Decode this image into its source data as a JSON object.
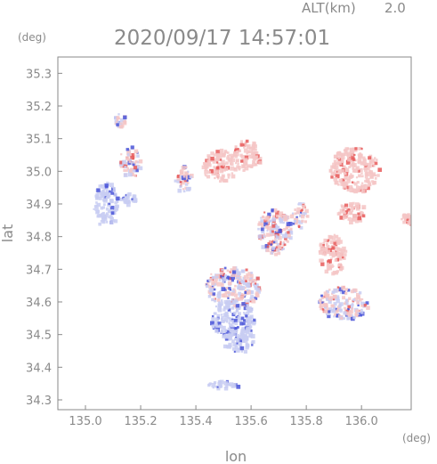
{
  "chart_data": {
    "type": "heatmap",
    "title": "2020/09/17 14:57:01",
    "altitude_label": "ALT(km)",
    "altitude_value": "2.0",
    "xlabel": "lon",
    "ylabel": "lat",
    "x_unit": "(deg)",
    "y_unit": "(deg)",
    "xlim": [
      134.9,
      136.18
    ],
    "ylim": [
      34.27,
      35.35
    ],
    "x_ticks": [
      "135.0",
      "135.2",
      "135.4",
      "135.6",
      "135.8",
      "136.0"
    ],
    "y_ticks": [
      "34.3",
      "34.4",
      "34.5",
      "34.6",
      "34.7",
      "34.8",
      "34.9",
      "35.0",
      "35.1",
      "35.2",
      "35.3"
    ],
    "grid": false,
    "colors": {
      "positive_light": "#f4c6c6",
      "positive_strong": "#e85a5a",
      "negative_light": "#c8ccf2",
      "negative_strong": "#4a55d8",
      "axis": "#8a8a8a"
    },
    "echo_regions": [
      {
        "lon": 135.07,
        "lat": 34.9,
        "rlon": 0.045,
        "rlat": 0.07,
        "polarity": "negative",
        "strength": 0.35
      },
      {
        "lon": 135.15,
        "lat": 34.92,
        "rlon": 0.025,
        "rlat": 0.018,
        "polarity": "negative",
        "strength": 0.35
      },
      {
        "lon": 135.12,
        "lat": 35.16,
        "rlon": 0.02,
        "rlat": 0.02,
        "polarity": "mixed",
        "strength": 0.6
      },
      {
        "lon": 135.16,
        "lat": 35.03,
        "rlon": 0.04,
        "rlat": 0.05,
        "polarity": "mixed",
        "strength": 0.6
      },
      {
        "lon": 135.48,
        "lat": 35.02,
        "rlon": 0.06,
        "rlat": 0.05,
        "polarity": "positive",
        "strength": 0.4
      },
      {
        "lon": 135.58,
        "lat": 35.05,
        "rlon": 0.05,
        "rlat": 0.05,
        "polarity": "positive",
        "strength": 0.35
      },
      {
        "lon": 135.35,
        "lat": 34.98,
        "rlon": 0.03,
        "rlat": 0.04,
        "polarity": "mixed",
        "strength": 0.5
      },
      {
        "lon": 135.68,
        "lat": 34.82,
        "rlon": 0.06,
        "rlat": 0.07,
        "polarity": "mixed",
        "strength": 0.7
      },
      {
        "lon": 135.77,
        "lat": 34.87,
        "rlon": 0.03,
        "rlat": 0.04,
        "polarity": "mixed",
        "strength": 0.6
      },
      {
        "lon": 135.53,
        "lat": 34.65,
        "rlon": 0.1,
        "rlat": 0.06,
        "polarity": "mixed",
        "strength": 0.7
      },
      {
        "lon": 135.53,
        "lat": 34.55,
        "rlon": 0.08,
        "rlat": 0.06,
        "polarity": "negative",
        "strength": 0.5
      },
      {
        "lon": 135.55,
        "lat": 34.49,
        "rlon": 0.06,
        "rlat": 0.04,
        "polarity": "negative",
        "strength": 0.4
      },
      {
        "lon": 135.97,
        "lat": 35.01,
        "rlon": 0.09,
        "rlat": 0.07,
        "polarity": "positive",
        "strength": 0.35
      },
      {
        "lon": 135.96,
        "lat": 34.88,
        "rlon": 0.05,
        "rlat": 0.03,
        "polarity": "positive",
        "strength": 0.35
      },
      {
        "lon": 135.89,
        "lat": 34.75,
        "rlon": 0.05,
        "rlat": 0.06,
        "polarity": "positive",
        "strength": 0.4
      },
      {
        "lon": 135.93,
        "lat": 34.6,
        "rlon": 0.09,
        "rlat": 0.05,
        "polarity": "mixed",
        "strength": 0.45
      },
      {
        "lon": 136.16,
        "lat": 34.86,
        "rlon": 0.02,
        "rlat": 0.02,
        "polarity": "positive",
        "strength": 0.8
      },
      {
        "lon": 135.5,
        "lat": 34.35,
        "rlon": 0.06,
        "rlat": 0.012,
        "polarity": "negative",
        "strength": 0.5
      }
    ]
  }
}
